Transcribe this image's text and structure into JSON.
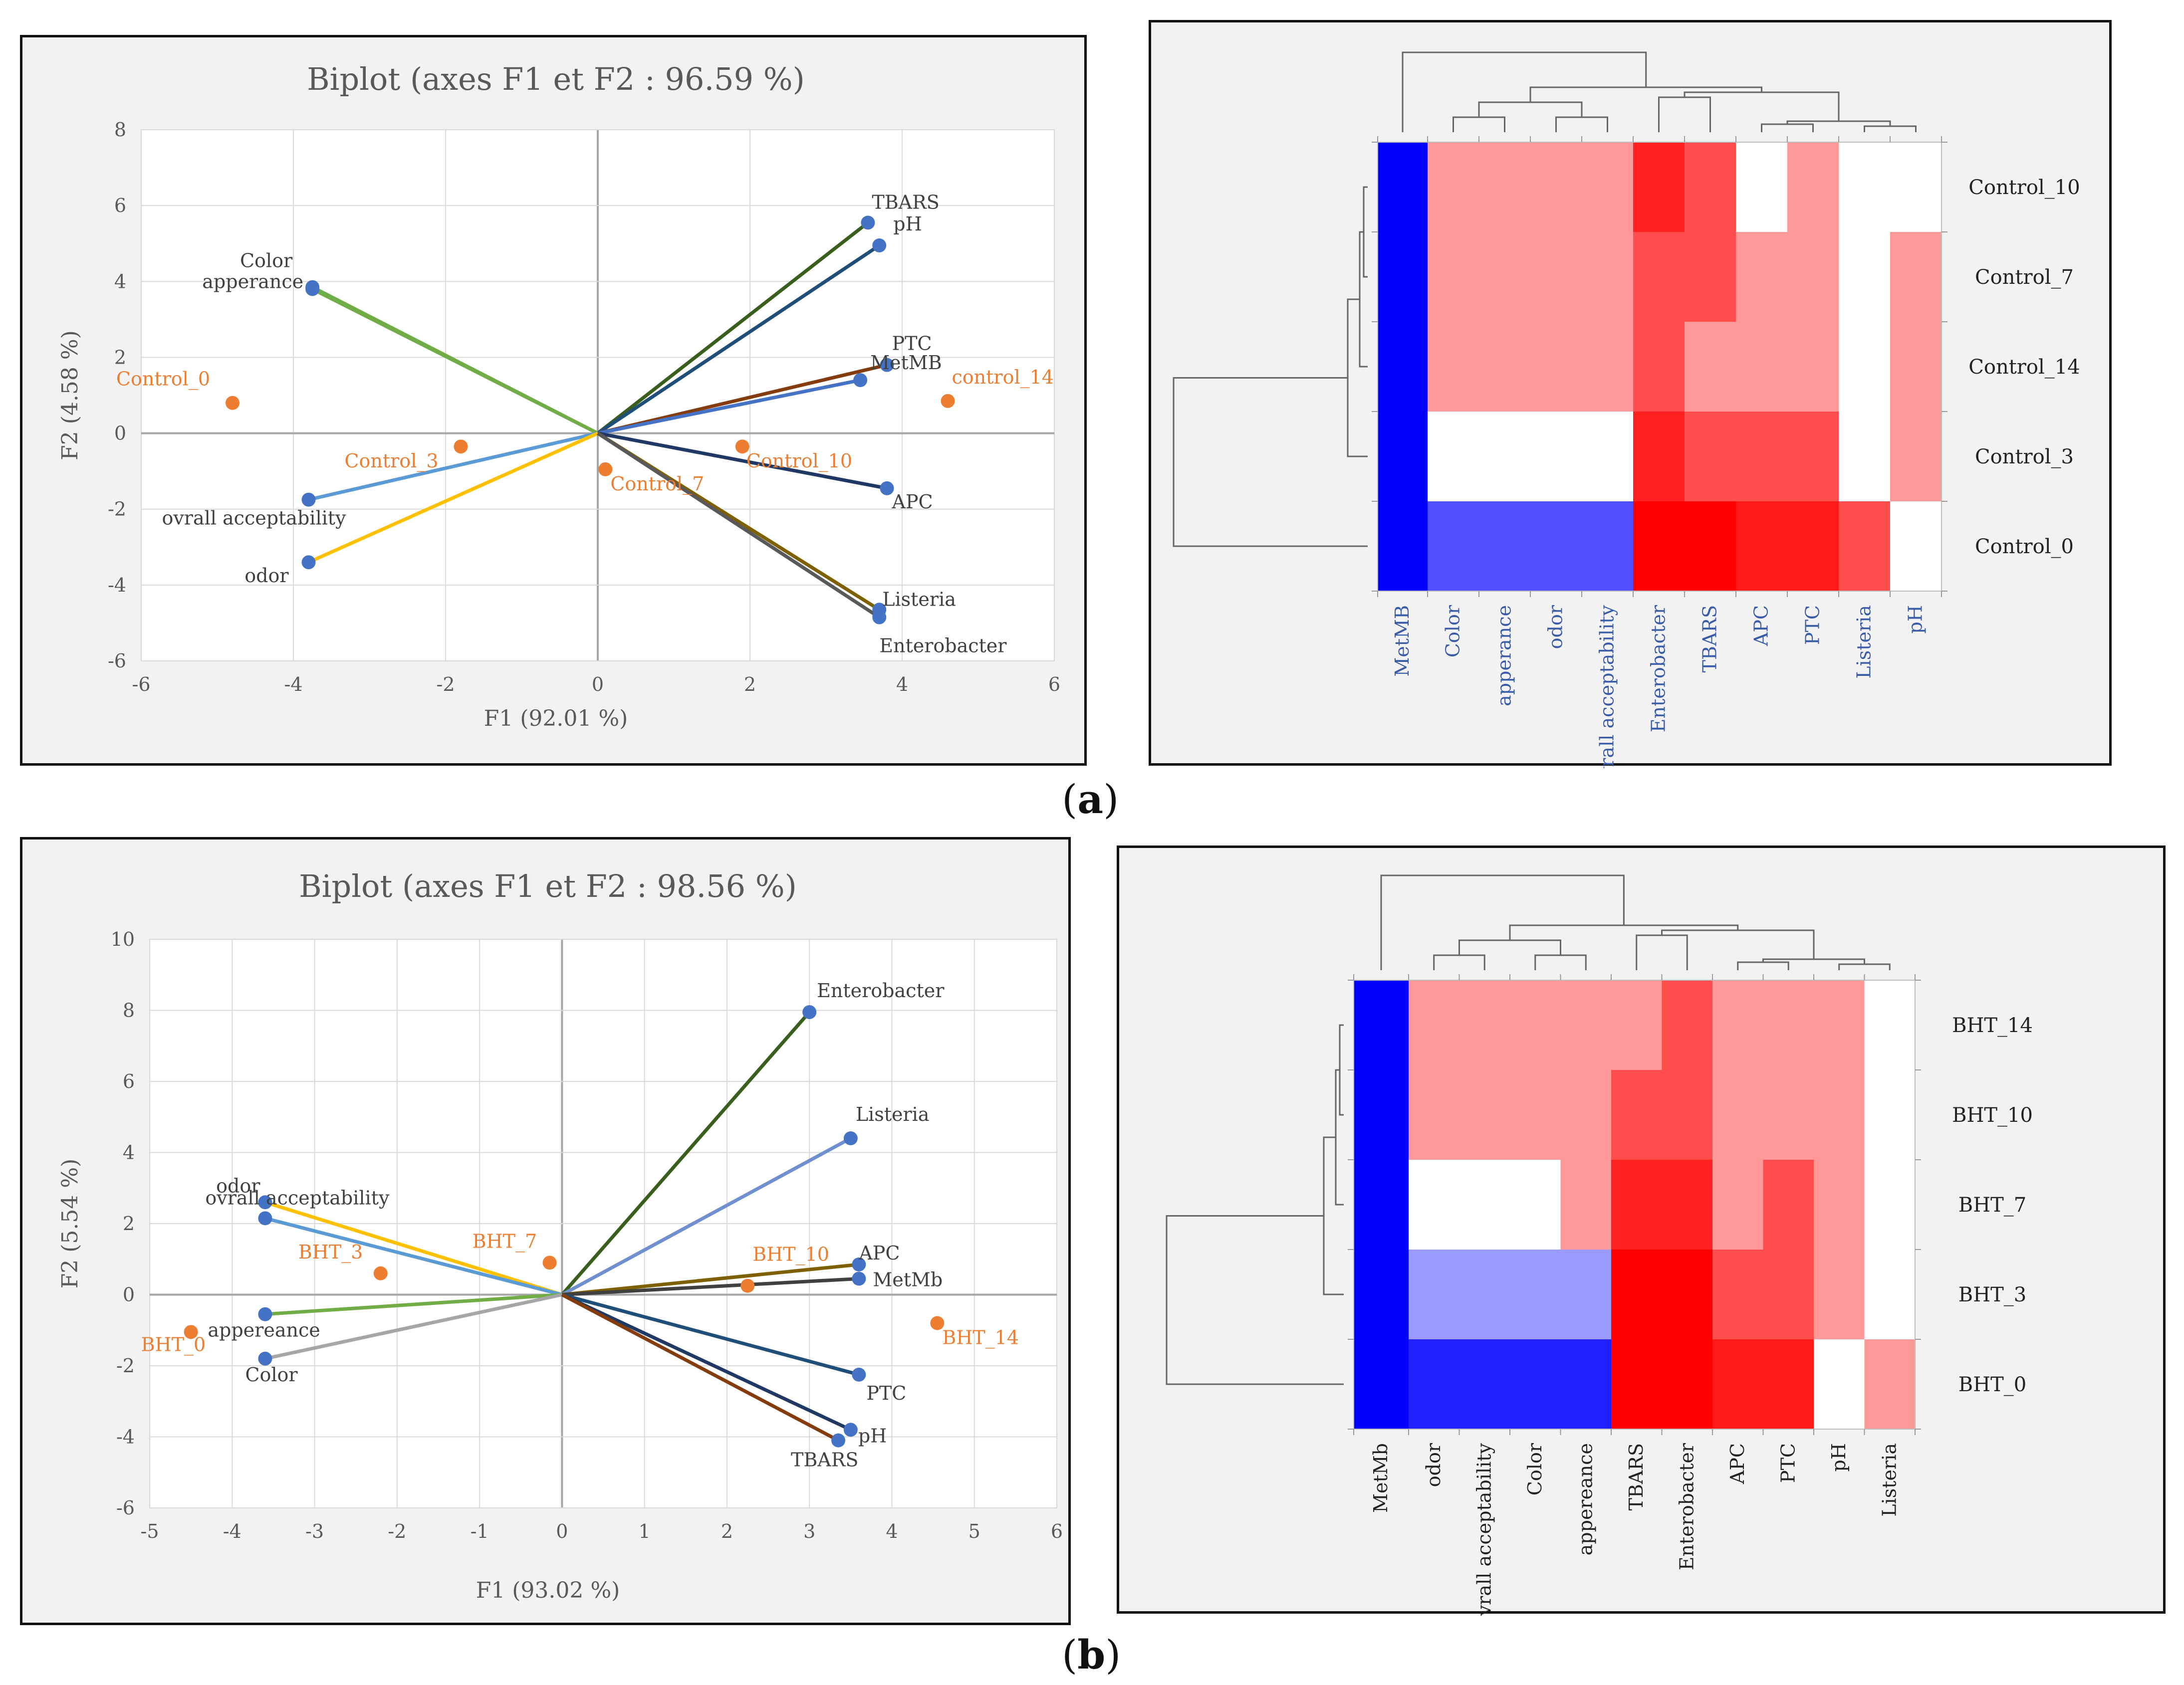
{
  "panel_labels": {
    "a": "a",
    "b": "b"
  },
  "chart_data": [
    {
      "id": "biplot_a",
      "type": "scatter",
      "title": "Biplot (axes F1 et F2 : 96.59 %)",
      "xlabel": "F1 (92.01 %)",
      "ylabel": "F2 (4.58 %)",
      "xlim": [
        -6,
        6
      ],
      "ylim": [
        -6,
        8
      ],
      "xticks": [
        -6,
        -4,
        -2,
        0,
        2,
        4,
        6
      ],
      "yticks": [
        -6,
        -4,
        -2,
        0,
        2,
        4,
        6,
        8
      ],
      "variables": [
        {
          "label": "TBARS",
          "x": 3.55,
          "y": 5.55,
          "color": "#3a5f1d"
        },
        {
          "label": "pH",
          "x": 3.7,
          "y": 4.95,
          "color": "#1f4e79"
        },
        {
          "label": "Color",
          "x": -3.75,
          "y": 3.85,
          "color": "#70ad47"
        },
        {
          "label": "apperance",
          "x": -3.75,
          "y": 3.8,
          "color": "#70ad47"
        },
        {
          "label": "PTC",
          "x": 3.8,
          "y": 1.8,
          "color": "#843c0c"
        },
        {
          "label": "MetMB",
          "x": 3.45,
          "y": 1.4,
          "color": "#4472c4"
        },
        {
          "label": "APC",
          "x": 3.8,
          "y": -1.45,
          "color": "#203864"
        },
        {
          "label": "ovrall acceptability",
          "x": -3.8,
          "y": -1.75,
          "color": "#5b9bd5"
        },
        {
          "label": "odor",
          "x": -3.8,
          "y": -3.4,
          "color": "#ffc000"
        },
        {
          "label": "Listeria",
          "x": 3.7,
          "y": -4.65,
          "color": "#7f6000"
        },
        {
          "label": "Enterobacter",
          "x": 3.7,
          "y": -4.85,
          "color": "#595959"
        }
      ],
      "observations": [
        {
          "label": "Control_0",
          "x": -4.8,
          "y": 0.8
        },
        {
          "label": "Control_3",
          "x": -1.8,
          "y": -0.35
        },
        {
          "label": "Control_7",
          "x": 0.1,
          "y": -0.95
        },
        {
          "label": "Control_10",
          "x": 1.9,
          "y": -0.35
        },
        {
          "label": "control_14",
          "x": 4.6,
          "y": 0.85
        }
      ]
    },
    {
      "id": "heatmap_a",
      "type": "heatmap",
      "rows": [
        "Control_10",
        "Control_7",
        "Control_14",
        "Control_3",
        "Control_0"
      ],
      "columns": [
        "MetMB",
        "Color",
        "apperance",
        "odor",
        "ovrall acceptability",
        "Enterobacter",
        "TBARS",
        "APC",
        "PTC",
        "Listeria",
        "pH"
      ],
      "column_label_color": [
        "#3a5ca8",
        "#3a5ca8",
        "#3a5ca8",
        "#3a5ca8",
        "#3a5ca8",
        "#3a5ca8",
        "#3a5ca8",
        "#3a5ca8",
        "#3a5ca8",
        "#3a5ca8",
        "#3a5ca8"
      ],
      "values": [
        [
          "#0000ff",
          "#ff9999",
          "#ff9999",
          "#ff9999",
          "#ff9999",
          "#ff2020",
          "#ff4c4c",
          "#ffffff",
          "#ff9999",
          "#ffffff",
          "#ffffff"
        ],
        [
          "#0000ff",
          "#ff9999",
          "#ff9999",
          "#ff9999",
          "#ff9999",
          "#ff4c4c",
          "#ff4c4c",
          "#ff9999",
          "#ff9999",
          "#ffffff",
          "#ff9999"
        ],
        [
          "#0000ff",
          "#ff9999",
          "#ff9999",
          "#ff9999",
          "#ff9999",
          "#ff4c4c",
          "#ff9999",
          "#ff9999",
          "#ff9999",
          "#ffffff",
          "#ff9999"
        ],
        [
          "#0000ff",
          "#ffffff",
          "#ffffff",
          "#ffffff",
          "#ffffff",
          "#ff2020",
          "#ff4c4c",
          "#ff4c4c",
          "#ff4c4c",
          "#ffffff",
          "#ff9999"
        ],
        [
          "#0000ff",
          "#5050ff",
          "#5050ff",
          "#5050ff",
          "#5050ff",
          "#ff0000",
          "#ff0000",
          "#ff1a1a",
          "#ff1a1a",
          "#ff4c4c",
          "#ffffff"
        ]
      ]
    },
    {
      "id": "biplot_b",
      "type": "scatter",
      "title": "Biplot (axes F1 et F2 : 98.56 %)",
      "xlabel": "F1 (93.02 %)",
      "ylabel": "F2 (5.54 %)",
      "xlim": [
        -5,
        6
      ],
      "ylim": [
        -6,
        10
      ],
      "xticks": [
        -5,
        -4,
        -3,
        -2,
        -1,
        0,
        1,
        2,
        3,
        4,
        5,
        6
      ],
      "yticks": [
        -6,
        -4,
        -2,
        0,
        2,
        4,
        6,
        8,
        10
      ],
      "variables": [
        {
          "label": "Enterobacter",
          "x": 3.0,
          "y": 7.95,
          "color": "#3a5f1d"
        },
        {
          "label": "Listeria",
          "x": 3.5,
          "y": 4.4,
          "color": "#6f8fcf"
        },
        {
          "label": "odor",
          "x": -3.6,
          "y": 2.6,
          "color": "#ffc000"
        },
        {
          "label": "ovrall acceptability",
          "x": -3.6,
          "y": 2.15,
          "color": "#5b9bd5"
        },
        {
          "label": "APC",
          "x": 3.6,
          "y": 0.85,
          "color": "#7f6000"
        },
        {
          "label": "MetMb",
          "x": 3.6,
          "y": 0.45,
          "color": "#404040"
        },
        {
          "label": "appereance",
          "x": -3.6,
          "y": -0.55,
          "color": "#70ad47"
        },
        {
          "label": "Color",
          "x": -3.6,
          "y": -1.8,
          "color": "#a6a6a6"
        },
        {
          "label": "PTC",
          "x": 3.6,
          "y": -2.25,
          "color": "#1f4e79"
        },
        {
          "label": "pH",
          "x": 3.5,
          "y": -3.8,
          "color": "#203864"
        },
        {
          "label": "TBARS",
          "x": 3.35,
          "y": -4.1,
          "color": "#843c0c"
        }
      ],
      "observations": [
        {
          "label": "BHT_0",
          "x": -4.5,
          "y": -1.05
        },
        {
          "label": "BHT_3",
          "x": -2.2,
          "y": 0.6
        },
        {
          "label": "BHT_7",
          "x": -0.15,
          "y": 0.9
        },
        {
          "label": "BHT_10",
          "x": 2.25,
          "y": 0.25
        },
        {
          "label": "BHT_14",
          "x": 4.55,
          "y": -0.8
        }
      ]
    },
    {
      "id": "heatmap_b",
      "type": "heatmap",
      "rows": [
        "BHT_14",
        "BHT_10",
        "BHT_7",
        "BHT_3",
        "BHT_0"
      ],
      "columns": [
        "MetMb",
        "odor",
        "ovrall acceptability",
        "Color",
        "appereance",
        "TBARS",
        "Enterobacter",
        "APC",
        "PTC",
        "pH",
        "Listeria"
      ],
      "values": [
        [
          "#0000ff",
          "#ff9999",
          "#ff9999",
          "#ff9999",
          "#ff9999",
          "#ff9999",
          "#ff4c4c",
          "#ff9999",
          "#ff9999",
          "#ff9999",
          "#ffffff"
        ],
        [
          "#0000ff",
          "#ff9999",
          "#ff9999",
          "#ff9999",
          "#ff9999",
          "#ff4c4c",
          "#ff4c4c",
          "#ff9999",
          "#ff9999",
          "#ff9999",
          "#ffffff"
        ],
        [
          "#0000ff",
          "#ffffff",
          "#ffffff",
          "#ffffff",
          "#ff9999",
          "#ff2020",
          "#ff2020",
          "#ff9999",
          "#ff4c4c",
          "#ff9999",
          "#ffffff"
        ],
        [
          "#0000ff",
          "#9a9aff",
          "#9a9aff",
          "#9a9aff",
          "#9a9aff",
          "#ff0000",
          "#ff0000",
          "#ff4c4c",
          "#ff4c4c",
          "#ff9999",
          "#ffffff"
        ],
        [
          "#0000ff",
          "#2020ff",
          "#2020ff",
          "#2020ff",
          "#2020ff",
          "#ff0000",
          "#ff0000",
          "#ff1a1a",
          "#ff1a1a",
          "#ffffff",
          "#ff9999"
        ]
      ]
    }
  ]
}
